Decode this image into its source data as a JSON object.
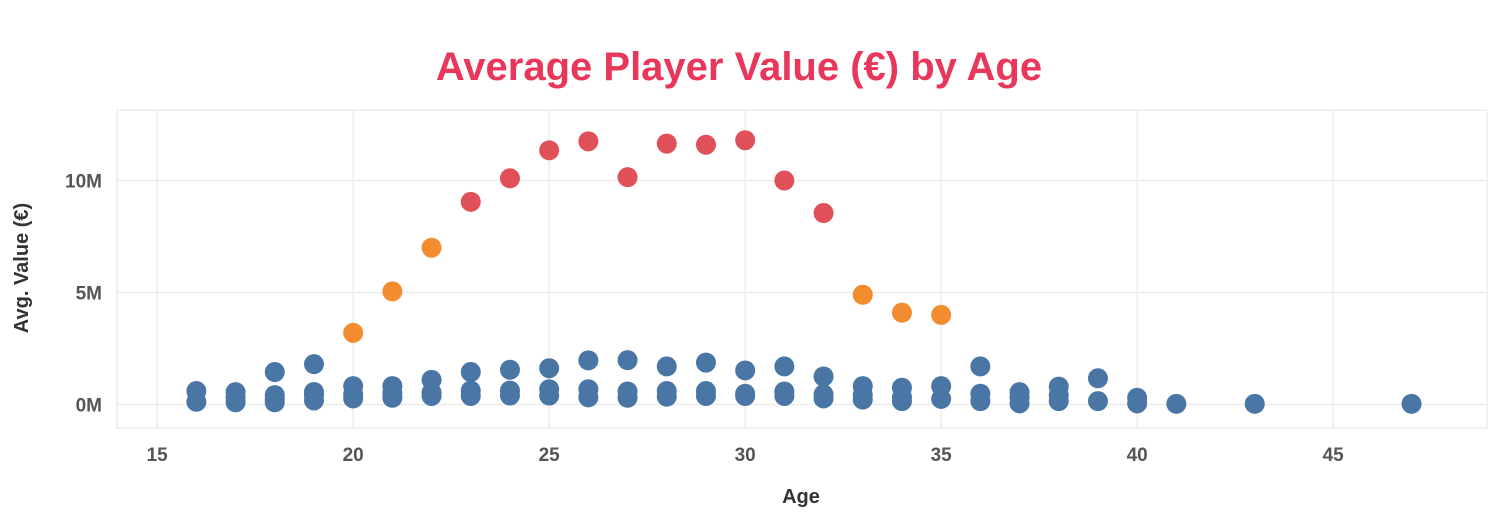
{
  "colors": {
    "title": "#e8375a",
    "low": "#4a76a6",
    "mid": "#f28c2f",
    "high": "#e05059"
  },
  "chart_data": {
    "type": "scatter",
    "title": "Average Player Value (€) by Age",
    "xlabel": "Age",
    "ylabel": "Avg. Value (€)",
    "xlim": [
      13.975,
      48.925
    ],
    "ylim": [
      -1050000,
      13150000
    ],
    "xticks": [
      15,
      20,
      25,
      30,
      35,
      40,
      45
    ],
    "xtick_labels": [
      "15",
      "20",
      "25",
      "30",
      "35",
      "40",
      "45"
    ],
    "yticks": [
      0,
      5000000,
      10000000
    ],
    "ytick_labels": [
      "0M",
      "5M",
      "10M"
    ],
    "grid": true,
    "legend": "none",
    "points": [
      {
        "x": 16,
        "y": 600000,
        "c": "low"
      },
      {
        "x": 16,
        "y": 120000,
        "c": "low"
      },
      {
        "x": 17,
        "y": 550000,
        "c": "low"
      },
      {
        "x": 17,
        "y": 320000,
        "c": "low"
      },
      {
        "x": 17,
        "y": 100000,
        "c": "low"
      },
      {
        "x": 18,
        "y": 1450000,
        "c": "low"
      },
      {
        "x": 18,
        "y": 420000,
        "c": "low"
      },
      {
        "x": 18,
        "y": 250000,
        "c": "low"
      },
      {
        "x": 18,
        "y": 100000,
        "c": "low"
      },
      {
        "x": 19,
        "y": 1800000,
        "c": "low"
      },
      {
        "x": 19,
        "y": 560000,
        "c": "low"
      },
      {
        "x": 19,
        "y": 420000,
        "c": "low"
      },
      {
        "x": 19,
        "y": 180000,
        "c": "low"
      },
      {
        "x": 20,
        "y": 3200000,
        "c": "mid"
      },
      {
        "x": 20,
        "y": 820000,
        "c": "low"
      },
      {
        "x": 20,
        "y": 450000,
        "c": "low"
      },
      {
        "x": 20,
        "y": 270000,
        "c": "low"
      },
      {
        "x": 21,
        "y": 5050000,
        "c": "mid"
      },
      {
        "x": 21,
        "y": 820000,
        "c": "low"
      },
      {
        "x": 21,
        "y": 520000,
        "c": "low"
      },
      {
        "x": 21,
        "y": 300000,
        "c": "low"
      },
      {
        "x": 22,
        "y": 7000000,
        "c": "mid"
      },
      {
        "x": 22,
        "y": 1100000,
        "c": "low"
      },
      {
        "x": 22,
        "y": 530000,
        "c": "low"
      },
      {
        "x": 22,
        "y": 380000,
        "c": "low"
      },
      {
        "x": 23,
        "y": 9050000,
        "c": "high"
      },
      {
        "x": 23,
        "y": 1450000,
        "c": "low"
      },
      {
        "x": 23,
        "y": 620000,
        "c": "low"
      },
      {
        "x": 23,
        "y": 380000,
        "c": "low"
      },
      {
        "x": 24,
        "y": 10100000,
        "c": "high"
      },
      {
        "x": 24,
        "y": 1550000,
        "c": "low"
      },
      {
        "x": 24,
        "y": 620000,
        "c": "low"
      },
      {
        "x": 24,
        "y": 400000,
        "c": "low"
      },
      {
        "x": 25,
        "y": 11350000,
        "c": "high"
      },
      {
        "x": 25,
        "y": 1620000,
        "c": "low"
      },
      {
        "x": 25,
        "y": 680000,
        "c": "low"
      },
      {
        "x": 25,
        "y": 400000,
        "c": "low"
      },
      {
        "x": 26,
        "y": 11750000,
        "c": "high"
      },
      {
        "x": 26,
        "y": 1970000,
        "c": "low"
      },
      {
        "x": 26,
        "y": 680000,
        "c": "low"
      },
      {
        "x": 26,
        "y": 320000,
        "c": "low"
      },
      {
        "x": 27,
        "y": 10150000,
        "c": "high"
      },
      {
        "x": 27,
        "y": 1980000,
        "c": "low"
      },
      {
        "x": 27,
        "y": 580000,
        "c": "low"
      },
      {
        "x": 27,
        "y": 300000,
        "c": "low"
      },
      {
        "x": 28,
        "y": 11650000,
        "c": "high"
      },
      {
        "x": 28,
        "y": 1700000,
        "c": "low"
      },
      {
        "x": 28,
        "y": 600000,
        "c": "low"
      },
      {
        "x": 28,
        "y": 350000,
        "c": "low"
      },
      {
        "x": 29,
        "y": 11600000,
        "c": "high"
      },
      {
        "x": 29,
        "y": 1870000,
        "c": "low"
      },
      {
        "x": 29,
        "y": 600000,
        "c": "low"
      },
      {
        "x": 29,
        "y": 380000,
        "c": "low"
      },
      {
        "x": 30,
        "y": 11800000,
        "c": "high"
      },
      {
        "x": 30,
        "y": 1520000,
        "c": "low"
      },
      {
        "x": 30,
        "y": 480000,
        "c": "low"
      },
      {
        "x": 30,
        "y": 380000,
        "c": "low"
      },
      {
        "x": 31,
        "y": 10000000,
        "c": "high"
      },
      {
        "x": 31,
        "y": 1700000,
        "c": "low"
      },
      {
        "x": 31,
        "y": 580000,
        "c": "low"
      },
      {
        "x": 31,
        "y": 380000,
        "c": "low"
      },
      {
        "x": 32,
        "y": 8550000,
        "c": "high"
      },
      {
        "x": 32,
        "y": 1250000,
        "c": "low"
      },
      {
        "x": 32,
        "y": 450000,
        "c": "low"
      },
      {
        "x": 32,
        "y": 270000,
        "c": "low"
      },
      {
        "x": 33,
        "y": 4900000,
        "c": "mid"
      },
      {
        "x": 33,
        "y": 820000,
        "c": "low"
      },
      {
        "x": 33,
        "y": 420000,
        "c": "low"
      },
      {
        "x": 33,
        "y": 220000,
        "c": "low"
      },
      {
        "x": 34,
        "y": 4100000,
        "c": "mid"
      },
      {
        "x": 34,
        "y": 750000,
        "c": "low"
      },
      {
        "x": 34,
        "y": 330000,
        "c": "low"
      },
      {
        "x": 34,
        "y": 150000,
        "c": "low"
      },
      {
        "x": 35,
        "y": 4000000,
        "c": "mid"
      },
      {
        "x": 35,
        "y": 820000,
        "c": "low"
      },
      {
        "x": 35,
        "y": 250000,
        "c": "low"
      },
      {
        "x": 36,
        "y": 1700000,
        "c": "low"
      },
      {
        "x": 36,
        "y": 480000,
        "c": "low"
      },
      {
        "x": 36,
        "y": 150000,
        "c": "low"
      },
      {
        "x": 37,
        "y": 550000,
        "c": "low"
      },
      {
        "x": 37,
        "y": 320000,
        "c": "low"
      },
      {
        "x": 37,
        "y": 50000,
        "c": "low"
      },
      {
        "x": 38,
        "y": 800000,
        "c": "low"
      },
      {
        "x": 38,
        "y": 420000,
        "c": "low"
      },
      {
        "x": 38,
        "y": 150000,
        "c": "low"
      },
      {
        "x": 39,
        "y": 1170000,
        "c": "low"
      },
      {
        "x": 39,
        "y": 150000,
        "c": "low"
      },
      {
        "x": 40,
        "y": 300000,
        "c": "low"
      },
      {
        "x": 40,
        "y": 50000,
        "c": "low"
      },
      {
        "x": 41,
        "y": 30000,
        "c": "low"
      },
      {
        "x": 43,
        "y": 30000,
        "c": "low"
      },
      {
        "x": 47,
        "y": 30000,
        "c": "low"
      }
    ]
  }
}
